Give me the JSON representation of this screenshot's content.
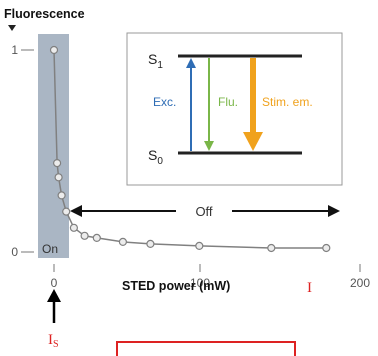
{
  "chart_data": {
    "type": "scatter",
    "title": "Fluorescence",
    "xlabel": "STED power (mW)",
    "xlim": [
      0,
      200
    ],
    "ylim": [
      0,
      1
    ],
    "x_ticks": [
      "0",
      "100",
      "200"
    ],
    "y_ticks": [
      "0",
      "1"
    ],
    "series": [
      {
        "x": [
          0,
          2,
          3,
          5,
          8,
          13,
          20,
          28,
          45,
          63,
          95,
          142,
          178
        ],
        "y": [
          1.0,
          0.44,
          0.37,
          0.28,
          0.2,
          0.12,
          0.08,
          0.07,
          0.05,
          0.04,
          0.03,
          0.02,
          0.02
        ]
      }
    ],
    "on_region_label": "On",
    "off_region_label": "Off"
  },
  "inset": {
    "s1_label": "S",
    "s1_sub": "1",
    "s0_label": "S",
    "s0_sub": "0",
    "exc_label": "Exc.",
    "flu_label": "Flu.",
    "stim_label": "Stim. em.",
    "colors": {
      "exc": "#2f6db5",
      "flu": "#7ab648",
      "stim": "#f0a21d"
    }
  },
  "annotations": {
    "is_label": "I",
    "is_sub": "S",
    "i_label": "I"
  },
  "colors": {
    "on_region": "#aab6c4",
    "line": "#808080",
    "annotation_red": "#dd2222",
    "axis": "#555555"
  }
}
